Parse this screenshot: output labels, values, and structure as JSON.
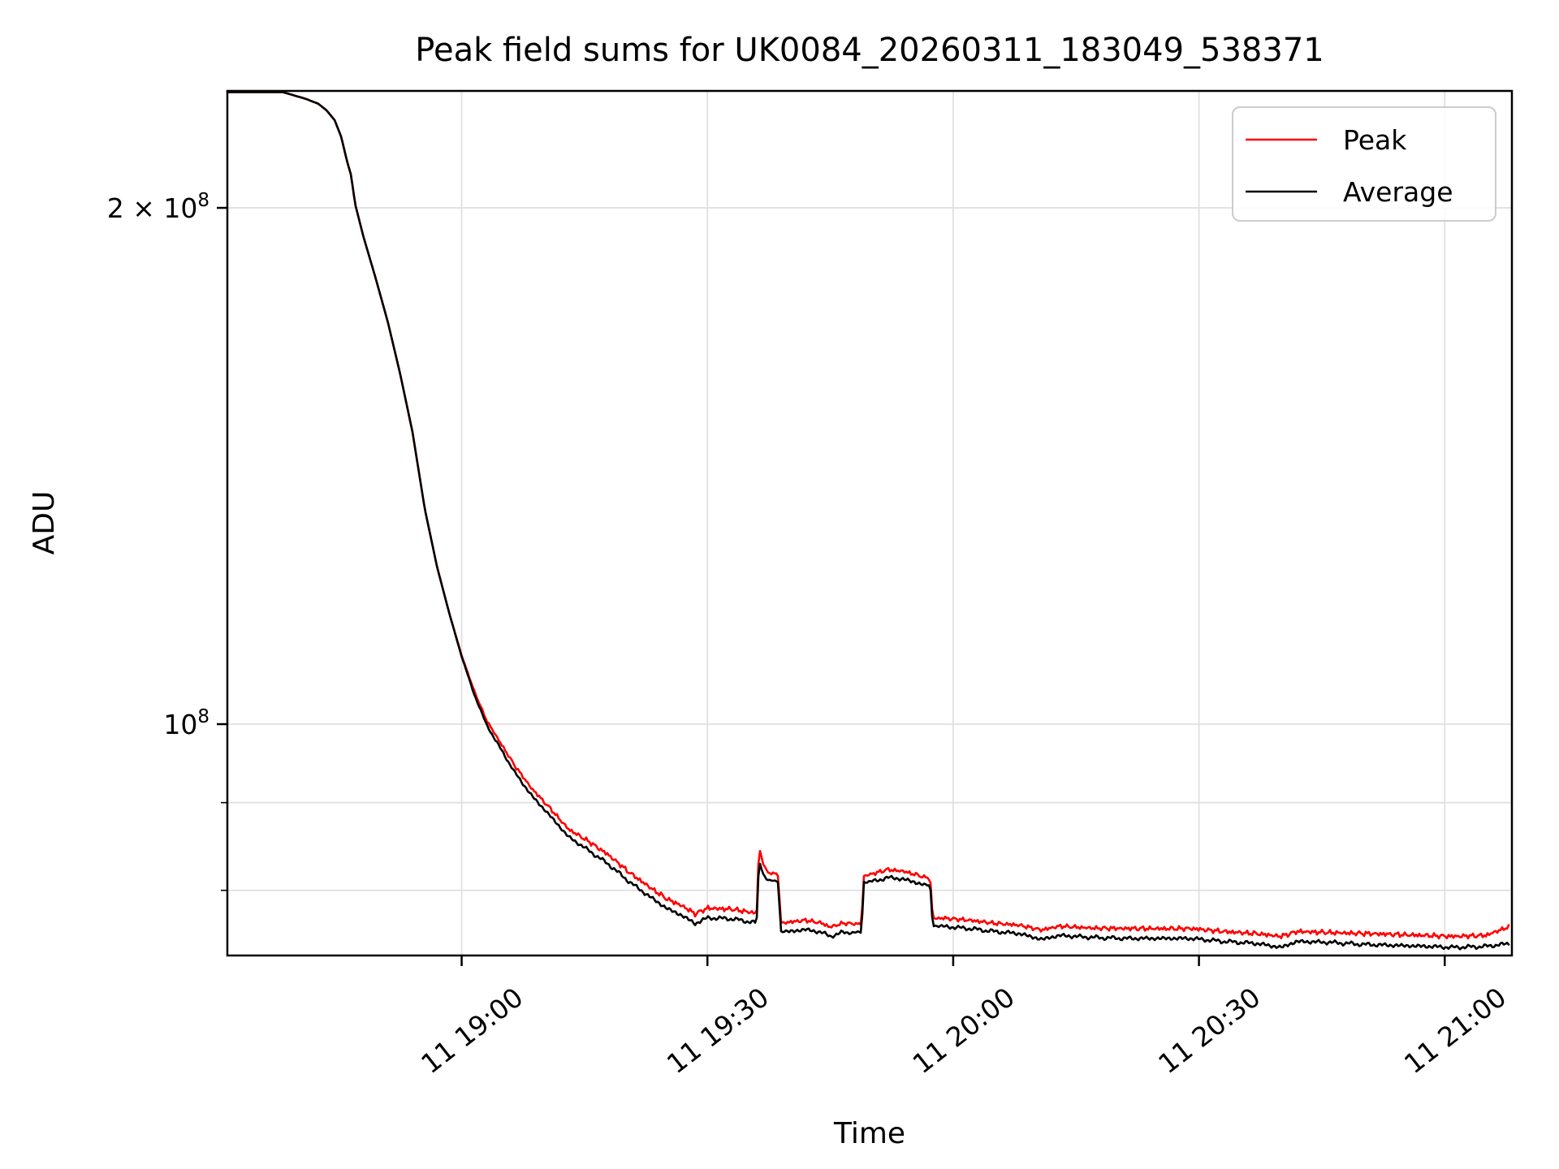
{
  "page": {
    "background": "#ffffff"
  },
  "chart_data": {
    "type": "line",
    "title": "Peak field sums for UK0084_20260311_183049_538371",
    "xlabel": "Time",
    "ylabel": "ADU",
    "grid": true,
    "x_axis": {
      "kind": "time",
      "day_label": "11",
      "xlim_minutes_after_1830": [
        1.4,
        158.2
      ],
      "ticks": [
        {
          "label": "11 19:00",
          "minute": 30
        },
        {
          "label": "11 19:30",
          "minute": 60
        },
        {
          "label": "11 20:00",
          "minute": 90
        },
        {
          "label": "11 20:30",
          "minute": 120
        },
        {
          "label": "11 21:00",
          "minute": 150
        }
      ],
      "tick_rotation_deg": 38
    },
    "y_axis": {
      "scale": "log",
      "ylim": [
        73300000,
        234000000
      ],
      "major_ticks": [
        {
          "base": "2 × 10",
          "exp": "8",
          "value": 200000000
        },
        {
          "base": "10",
          "exp": "8",
          "value": 100000000
        }
      ],
      "minor_grid_values": [
        90000000,
        80000000
      ]
    },
    "legend": {
      "position": "upper right",
      "entries": [
        "Peak",
        "Average"
      ],
      "border_color": "#cccccc",
      "background": "#ffffff"
    },
    "colors": {
      "peak": "#ff0000",
      "average": "#000000",
      "grid": "#e0e0e0",
      "spine": "#000000"
    },
    "series": [
      {
        "name": "Peak",
        "color": "#ff0000",
        "noise_mode": "up",
        "points_format": [
          "minutes_after_1830",
          "adu",
          "noise_px"
        ],
        "points": [
          [
            1.4,
            242000000,
            0
          ],
          [
            3.0,
            239000000,
            0
          ],
          [
            5.0,
            236000000,
            0
          ],
          [
            7.0,
            234500000,
            0
          ],
          [
            9.0,
            233000000,
            0
          ],
          [
            11.0,
            231500000,
            0
          ],
          [
            12.5,
            230000000,
            0
          ],
          [
            13.5,
            228000000,
            0
          ],
          [
            14.5,
            225000000,
            0
          ],
          [
            15.3,
            220000000,
            0
          ],
          [
            16.0,
            213000000,
            0
          ],
          [
            16.5,
            209000000,
            0
          ],
          [
            17.0,
            201000000,
            0
          ],
          [
            18.0,
            192500000,
            0
          ],
          [
            19.5,
            182000000,
            0
          ],
          [
            21.0,
            171500000,
            0
          ],
          [
            22.5,
            160000000,
            0
          ],
          [
            24.0,
            148000000,
            0
          ],
          [
            25.5,
            133500000,
            0
          ],
          [
            27.0,
            123500000,
            0
          ],
          [
            28.5,
            116000000,
            0
          ],
          [
            30.0,
            109600000,
            0.5
          ],
          [
            31.5,
            104500000,
            2
          ],
          [
            33.0,
            100400000,
            3
          ],
          [
            34.5,
            97700000,
            3.5
          ],
          [
            36.5,
            94300000,
            4
          ],
          [
            38.5,
            91500000,
            4.5
          ],
          [
            41.0,
            88800000,
            5
          ],
          [
            43.0,
            86600000,
            5
          ],
          [
            45.5,
            85100000,
            6
          ],
          [
            48.0,
            83500000,
            6
          ],
          [
            50.5,
            81600000,
            6
          ],
          [
            53.0,
            80000000,
            6
          ],
          [
            55.0,
            78800000,
            6
          ],
          [
            57.0,
            78000000,
            6
          ],
          [
            58.5,
            77200000,
            6
          ],
          [
            60.0,
            77800000,
            6
          ],
          [
            63.0,
            77700000,
            6
          ],
          [
            65.8,
            77300000,
            6
          ],
          [
            66.0,
            77300000,
            2
          ],
          [
            66.3,
            84700000,
            2
          ],
          [
            66.8,
            82800000,
            3
          ],
          [
            67.3,
            81800000,
            3
          ],
          [
            68.4,
            81600000,
            3
          ],
          [
            68.7,
            81500000,
            2
          ],
          [
            68.9,
            76400000,
            3
          ],
          [
            70.0,
            76400000,
            5
          ],
          [
            72.0,
            76600000,
            5
          ],
          [
            74.0,
            76300000,
            5
          ],
          [
            75.0,
            75900000,
            5
          ],
          [
            76.5,
            76300000,
            5
          ],
          [
            78.8,
            76300000,
            3
          ],
          [
            79.1,
            81400000,
            3
          ],
          [
            80.5,
            81600000,
            5
          ],
          [
            82.0,
            82000000,
            5
          ],
          [
            84.0,
            81800000,
            5
          ],
          [
            86.0,
            81300000,
            5
          ],
          [
            87.2,
            81100000,
            3
          ],
          [
            87.5,
            76900000,
            3
          ],
          [
            89.0,
            76800000,
            5
          ],
          [
            92.0,
            76600000,
            5
          ],
          [
            95.0,
            76300000,
            5
          ],
          [
            98.0,
            76100000,
            5
          ],
          [
            100.8,
            75600000,
            5
          ],
          [
            103.0,
            76000000,
            5
          ],
          [
            107.0,
            75800000,
            5
          ],
          [
            111.0,
            75700000,
            6
          ],
          [
            115.0,
            75700000,
            6
          ],
          [
            119.0,
            75700000,
            6
          ],
          [
            123.0,
            75400000,
            6
          ],
          [
            127.0,
            75200000,
            6
          ],
          [
            130.0,
            74900000,
            6
          ],
          [
            132.0,
            75400000,
            6
          ],
          [
            136.0,
            75300000,
            6
          ],
          [
            140.0,
            75200000,
            6
          ],
          [
            144.0,
            75100000,
            6
          ],
          [
            148.0,
            75000000,
            6
          ],
          [
            151.0,
            74900000,
            6
          ],
          [
            155.0,
            75000000,
            6
          ],
          [
            158.0,
            76000000,
            5
          ]
        ]
      },
      {
        "name": "Average",
        "color": "#000000",
        "noise_mode": "sym",
        "points_format": [
          "minutes_after_1830",
          "adu",
          "noise_px"
        ],
        "points": [
          [
            1.4,
            242000000,
            0
          ],
          [
            3.0,
            239000000,
            0
          ],
          [
            5.0,
            236000000,
            0
          ],
          [
            7.0,
            234500000,
            0
          ],
          [
            9.0,
            233000000,
            0
          ],
          [
            11.0,
            231500000,
            0
          ],
          [
            12.5,
            230000000,
            0
          ],
          [
            13.5,
            228000000,
            0
          ],
          [
            14.5,
            225000000,
            0
          ],
          [
            15.3,
            220000000,
            0
          ],
          [
            16.0,
            213000000,
            0
          ],
          [
            16.5,
            209000000,
            0
          ],
          [
            17.0,
            201000000,
            0
          ],
          [
            18.0,
            192500000,
            0
          ],
          [
            19.5,
            182000000,
            0
          ],
          [
            21.0,
            171500000,
            0
          ],
          [
            22.5,
            160000000,
            0
          ],
          [
            24.0,
            148000000,
            0
          ],
          [
            25.5,
            133500000,
            0
          ],
          [
            27.0,
            123500000,
            0
          ],
          [
            28.5,
            116000000,
            0
          ],
          [
            30.0,
            109500000,
            0.5
          ],
          [
            31.5,
            104200000,
            1
          ],
          [
            33.0,
            100000000,
            1.5
          ],
          [
            34.5,
            97200000,
            2
          ],
          [
            36.5,
            93700000,
            2
          ],
          [
            38.5,
            90900000,
            2.5
          ],
          [
            41.0,
            88200000,
            2.5
          ],
          [
            43.0,
            86000000,
            2.5
          ],
          [
            45.5,
            84400000,
            3
          ],
          [
            48.0,
            82800000,
            3
          ],
          [
            50.5,
            80900000,
            3
          ],
          [
            53.0,
            79300000,
            3
          ],
          [
            55.0,
            78100000,
            3
          ],
          [
            57.0,
            77300000,
            3
          ],
          [
            58.5,
            76500000,
            3
          ],
          [
            60.0,
            77100000,
            3
          ],
          [
            63.0,
            77000000,
            3
          ],
          [
            65.8,
            76600000,
            3
          ],
          [
            66.0,
            76600000,
            1
          ],
          [
            66.3,
            83300000,
            1
          ],
          [
            66.8,
            81800000,
            1
          ],
          [
            67.3,
            81100000,
            1
          ],
          [
            68.4,
            81000000,
            1
          ],
          [
            68.7,
            80900000,
            1
          ],
          [
            68.9,
            75700000,
            1
          ],
          [
            70.0,
            75700000,
            3
          ],
          [
            72.0,
            75900000,
            3
          ],
          [
            74.0,
            75600000,
            3
          ],
          [
            75.0,
            75200000,
            3
          ],
          [
            76.5,
            75600000,
            3
          ],
          [
            78.8,
            75600000,
            1
          ],
          [
            79.1,
            80900000,
            1
          ],
          [
            80.5,
            81000000,
            3
          ],
          [
            82.0,
            81400000,
            3
          ],
          [
            84.0,
            81200000,
            3
          ],
          [
            86.0,
            80700000,
            3
          ],
          [
            87.2,
            80500000,
            1
          ],
          [
            87.5,
            76300000,
            1
          ],
          [
            89.0,
            76200000,
            3
          ],
          [
            92.0,
            76000000,
            3
          ],
          [
            95.0,
            75700000,
            3
          ],
          [
            98.0,
            75500000,
            3
          ],
          [
            100.8,
            74900000,
            3
          ],
          [
            103.0,
            75300000,
            3
          ],
          [
            107.0,
            75100000,
            3
          ],
          [
            111.0,
            75000000,
            3
          ],
          [
            115.0,
            75000000,
            3
          ],
          [
            119.0,
            75000000,
            3
          ],
          [
            123.0,
            74700000,
            3
          ],
          [
            127.0,
            74500000,
            3
          ],
          [
            130.0,
            74100000,
            3
          ],
          [
            132.0,
            74700000,
            3
          ],
          [
            136.0,
            74600000,
            3
          ],
          [
            140.0,
            74400000,
            3
          ],
          [
            144.0,
            74300000,
            3
          ],
          [
            148.0,
            74200000,
            3
          ],
          [
            151.0,
            74100000,
            3
          ],
          [
            155.0,
            74200000,
            3
          ],
          [
            158.0,
            74500000,
            3
          ]
        ]
      }
    ]
  }
}
